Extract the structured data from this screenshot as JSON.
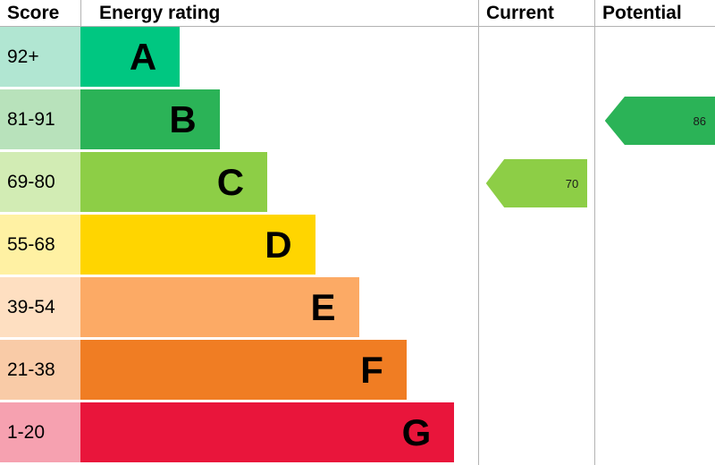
{
  "header": {
    "score": "Score",
    "energy_rating": "Energy rating",
    "current": "Current",
    "potential": "Potential"
  },
  "chart_data": {
    "type": "bar",
    "categories": [
      "A",
      "B",
      "C",
      "D",
      "E",
      "F",
      "G"
    ],
    "bands": [
      {
        "score": "92+",
        "letter": "A",
        "color": "#00c781",
        "score_bg": "#b1e6d2",
        "width_pct": 25
      },
      {
        "score": "81-91",
        "letter": "B",
        "color": "#2bb357",
        "score_bg": "#b8e2bb",
        "width_pct": 35
      },
      {
        "score": "69-80",
        "letter": "C",
        "color": "#8dce46",
        "score_bg": "#d2ecb4",
        "width_pct": 47
      },
      {
        "score": "55-68",
        "letter": "D",
        "color": "#ffd500",
        "score_bg": "#fff1a3",
        "width_pct": 59
      },
      {
        "score": "39-54",
        "letter": "E",
        "color": "#fcaa65",
        "score_bg": "#fedfc1",
        "width_pct": 70
      },
      {
        "score": "21-38",
        "letter": "F",
        "color": "#f07d23",
        "score_bg": "#f9cba7",
        "width_pct": 82
      },
      {
        "score": "1-20",
        "letter": "G",
        "color": "#e9153b",
        "score_bg": "#f6a1b0",
        "width_pct": 94
      }
    ],
    "current": {
      "value": 70,
      "band": "C",
      "color": "#8dce46"
    },
    "potential": {
      "value": 86,
      "band": "B",
      "color": "#2bb357"
    }
  }
}
